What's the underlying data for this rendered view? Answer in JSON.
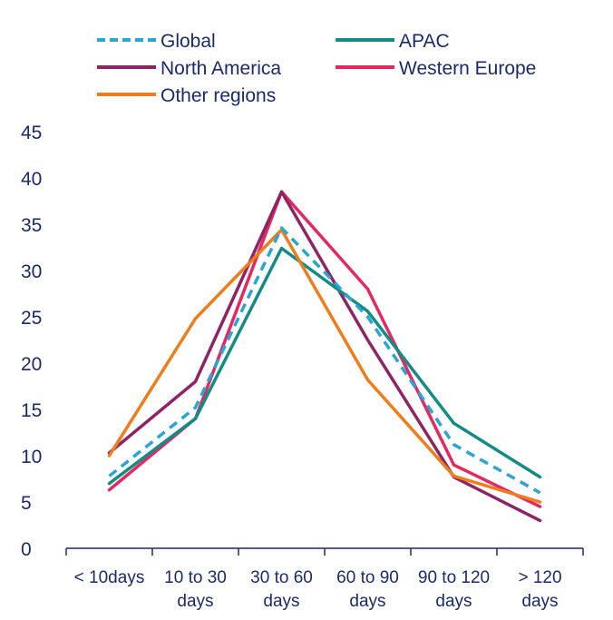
{
  "chart_data": {
    "type": "line",
    "categories": [
      [
        "< 10days"
      ],
      [
        "10 to 30",
        "days"
      ],
      [
        "30 to 60",
        "days"
      ],
      [
        "60 to 90",
        "days"
      ],
      [
        "90 to 120",
        "days"
      ],
      [
        "> 120",
        "days"
      ]
    ],
    "ylim": [
      0,
      45
    ],
    "yticks": [
      "0",
      "5",
      "10",
      "15",
      "20",
      "25",
      "30",
      "35",
      "40",
      "45"
    ],
    "grid": false,
    "legend_position": "top",
    "series": [
      {
        "name": "Global",
        "color": "#2aa6d4",
        "dashed": true,
        "values": [
          7.8,
          15.2,
          34.6,
          25.0,
          11.2,
          6.0
        ]
      },
      {
        "name": "APAC",
        "color": "#138c86",
        "dashed": false,
        "values": [
          7.0,
          14.0,
          32.4,
          25.6,
          13.5,
          7.7
        ]
      },
      {
        "name": "North America",
        "color": "#8e2466",
        "dashed": false,
        "values": [
          10.3,
          18.0,
          38.5,
          22.5,
          7.7,
          3.0
        ]
      },
      {
        "name": "Western Europe",
        "color": "#e5285f",
        "dashed": false,
        "values": [
          6.3,
          14.0,
          38.5,
          28.0,
          9.0,
          4.5
        ]
      },
      {
        "name": "Other regions",
        "color": "#f07d1c",
        "dashed": false,
        "values": [
          10.0,
          24.8,
          34.4,
          18.2,
          7.8,
          5.0
        ]
      }
    ]
  }
}
